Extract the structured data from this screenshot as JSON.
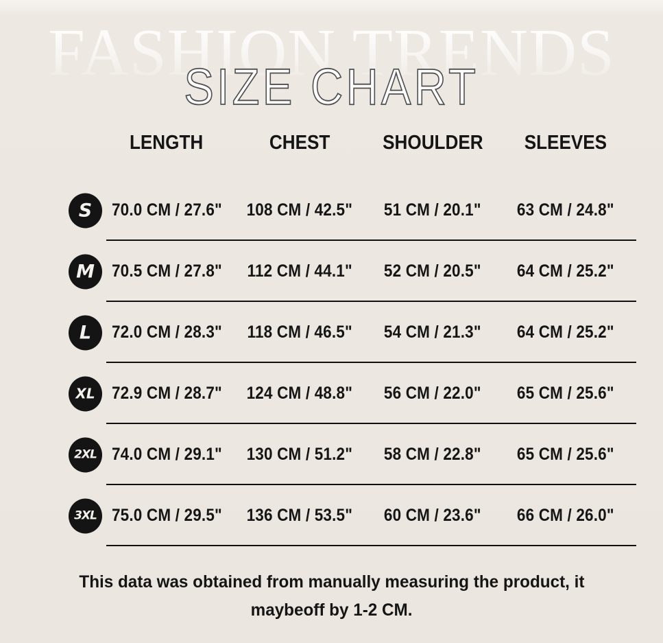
{
  "brand_watermark": "FASHION TRENDS",
  "page_title": "SIZE CHART",
  "colors": {
    "background": "#ECE7E0",
    "text": "#151515",
    "badge_background": "#141414",
    "badge_text": "#F5F2EE",
    "divider": "#101010",
    "title_fill": "#FDFDFD",
    "title_outline": "#4F4F4F"
  },
  "chart_data": {
    "type": "table",
    "title": "SIZE CHART",
    "columns": [
      "LENGTH",
      "CHEST",
      "SHOULDER",
      "SLEEVES"
    ],
    "row_labels": [
      "S",
      "M",
      "L",
      "XL",
      "2XL",
      "3XL"
    ],
    "units": [
      "CM",
      "INCH"
    ],
    "values_cm": [
      [
        70.0,
        108,
        51,
        63
      ],
      [
        70.5,
        112,
        52,
        64
      ],
      [
        72.0,
        118,
        54,
        64
      ],
      [
        72.9,
        124,
        56,
        65
      ],
      [
        74.0,
        130,
        58,
        65
      ],
      [
        75.0,
        136,
        60,
        66
      ]
    ],
    "values_inch": [
      [
        27.6,
        42.5,
        20.1,
        24.8
      ],
      [
        27.8,
        44.1,
        20.5,
        25.2
      ],
      [
        28.3,
        46.5,
        21.3,
        25.2
      ],
      [
        28.7,
        48.8,
        22.0,
        25.6
      ],
      [
        29.1,
        51.2,
        22.8,
        25.6
      ],
      [
        29.5,
        53.5,
        23.6,
        26.0
      ]
    ]
  },
  "table": {
    "columns": [
      "LENGTH",
      "CHEST",
      "SHOULDER",
      "SLEEVES"
    ],
    "rows": [
      {
        "size": "S",
        "cells": [
          "70.0 CM / 27.6\"",
          "108 CM / 42.5\"",
          "51 CM / 20.1\"",
          "63 CM / 24.8\""
        ]
      },
      {
        "size": "M",
        "cells": [
          "70.5 CM / 27.8\"",
          "112 CM / 44.1\"",
          "52 CM / 20.5\"",
          "64 CM / 25.2\""
        ]
      },
      {
        "size": "L",
        "cells": [
          "72.0 CM / 28.3\"",
          "118 CM / 46.5\"",
          "54 CM / 21.3\"",
          "64 CM / 25.2\""
        ]
      },
      {
        "size": "XL",
        "cells": [
          "72.9 CM / 28.7\"",
          "124 CM / 48.8\"",
          "56 CM / 22.0\"",
          "65 CM / 25.6\""
        ]
      },
      {
        "size": "2XL",
        "cells": [
          "74.0 CM / 29.1\"",
          "130 CM / 51.2\"",
          "58 CM / 22.8\"",
          "65 CM / 25.6\""
        ]
      },
      {
        "size": "3XL",
        "cells": [
          "75.0 CM / 29.5\"",
          "136 CM / 53.5\"",
          "60 CM / 23.6\"",
          "66 CM / 26.0\""
        ]
      }
    ]
  },
  "footer": {
    "line1": "This data was obtained from manually measuring the product, it",
    "line2": "maybeoff by 1-2 CM."
  }
}
